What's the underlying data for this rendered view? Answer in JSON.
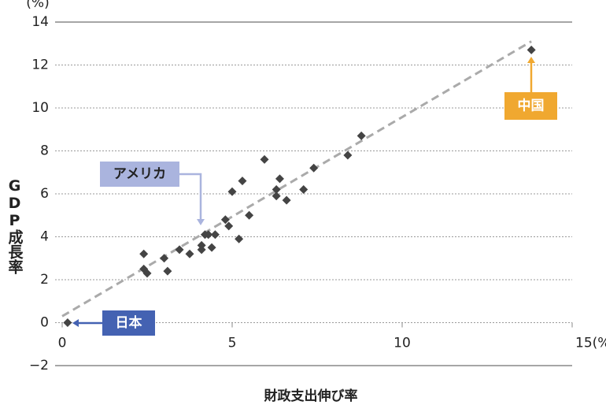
{
  "chart_data": {
    "type": "scatter",
    "y_unit": "(%)",
    "y_label": "GDP成長率",
    "x_label": "財政支出伸び率",
    "xlim": [
      0,
      15
    ],
    "xticks": [
      0,
      5,
      10,
      {
        "value": 15,
        "label": "15(%)"
      }
    ],
    "ylim": [
      -2,
      14
    ],
    "yticks": [
      {
        "value": -2,
        "label": "−2"
      },
      0,
      2,
      4,
      6,
      8,
      10,
      12,
      14
    ],
    "grid": true,
    "series": [
      {
        "color": "#444444",
        "x": [
          0.16,
          13.8,
          8.8,
          8.4,
          7.4,
          7.1,
          5.95,
          5.3,
          5.0,
          6.4,
          6.3,
          6.3,
          6.6,
          5.5,
          4.8,
          4.9,
          5.2,
          4.5,
          4.2,
          4.3,
          4.1,
          4.1,
          4.4,
          3.75,
          3.45,
          3.0,
          3.1,
          2.4,
          2.4,
          2.5
        ],
        "y": [
          0,
          12.7,
          8.7,
          7.8,
          7.2,
          6.2,
          7.6,
          6.6,
          6.1,
          6.7,
          6.2,
          5.9,
          5.7,
          5.0,
          4.8,
          4.5,
          3.9,
          4.1,
          4.1,
          4.1,
          3.6,
          3.4,
          3.5,
          3.2,
          3.4,
          3.0,
          2.4,
          3.2,
          2.5,
          2.3
        ]
      }
    ],
    "trendline": {
      "color": "#aaaaaa",
      "x": [
        0,
        13.8
      ],
      "y": [
        0.3,
        13.1
      ]
    },
    "annotations": [
      {
        "text": "アメリカ",
        "color": "#aab4de"
      },
      {
        "text": "中国",
        "color": "#f0a830"
      },
      {
        "text": "日本",
        "color": "#4462b2"
      }
    ]
  }
}
